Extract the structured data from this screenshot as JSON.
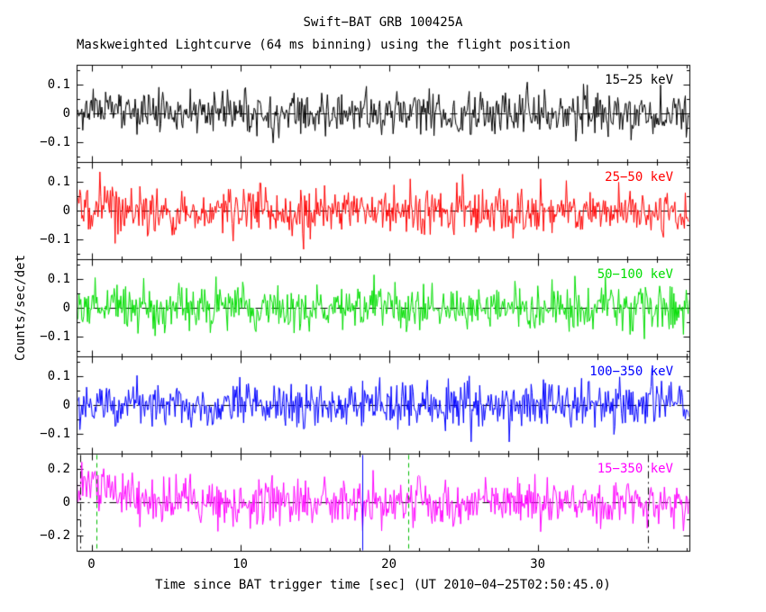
{
  "chart_data": {
    "type": "line",
    "title": "Swift−BAT GRB 100425A",
    "subtitle": "Maskweighted Lightcurve (64 ms binning) using the flight position",
    "xlabel": "Time since BAT trigger time [sec] (UT 2010−04−25T02:50:45.0)",
    "ylabel": "Counts/sec/det",
    "x_range": [
      -1.0,
      40.2
    ],
    "bin_sec": 0.064,
    "grid": false,
    "frame_color": "#000000",
    "x_minor_step": 2,
    "x_ticks": [
      {
        "t": 0,
        "label": "0"
      },
      {
        "t": 10,
        "label": "10"
      },
      {
        "t": 20,
        "label": "20"
      },
      {
        "t": 30,
        "label": "30"
      }
    ],
    "zero_line": {
      "style": "dash-dot",
      "color": "#000000"
    },
    "legend_position": "top-right-inside-each-panel",
    "panels": [
      {
        "label": "15−25 keV",
        "color": "#000000",
        "ylim": [
          -0.17,
          0.17
        ],
        "minor_step": 0.05,
        "yticks": [
          {
            "v": 0.1,
            "label": "0.1"
          },
          {
            "v": 0,
            "label": "0"
          },
          {
            "v": -0.1,
            "label": "−0.1"
          }
        ],
        "seed": 11,
        "noise_sigma": 0.036,
        "bumps": [
          {
            "t0": -1.0,
            "sigma": 5.0,
            "amp": 0.022
          }
        ]
      },
      {
        "label": "25−50 keV",
        "color": "#ff0000",
        "ylim": [
          -0.17,
          0.17
        ],
        "minor_step": 0.05,
        "yticks": [
          {
            "v": 0.1,
            "label": "0.1"
          },
          {
            "v": 0,
            "label": "0"
          },
          {
            "v": -0.1,
            "label": "−0.1"
          }
        ],
        "seed": 22,
        "noise_sigma": 0.04,
        "bumps": [
          {
            "t0": 1.0,
            "sigma": 2.0,
            "amp": 0.012
          }
        ]
      },
      {
        "label": "50−100 keV",
        "color": "#00dd00",
        "ylim": [
          -0.17,
          0.17
        ],
        "minor_step": 0.05,
        "yticks": [
          {
            "v": 0.1,
            "label": "0.1"
          },
          {
            "v": 0,
            "label": "0"
          },
          {
            "v": -0.1,
            "label": "−0.1"
          }
        ],
        "seed": 33,
        "noise_sigma": 0.042,
        "bumps": [
          {
            "t0": 0.8,
            "sigma": 1.5,
            "amp": 0.015
          }
        ]
      },
      {
        "label": "100−350 keV",
        "color": "#0000ff",
        "ylim": [
          -0.17,
          0.17
        ],
        "minor_step": 0.05,
        "yticks": [
          {
            "v": 0.1,
            "label": "0.1"
          },
          {
            "v": 0,
            "label": "0"
          },
          {
            "v": -0.1,
            "label": "−0.1"
          }
        ],
        "seed": 44,
        "noise_sigma": 0.04,
        "bumps": []
      },
      {
        "label": "15−350 keV",
        "color": "#ff00ff",
        "ylim": [
          -0.29,
          0.29
        ],
        "minor_step": 0.1,
        "yticks": [
          {
            "v": 0.2,
            "label": "0.2"
          },
          {
            "v": 0,
            "label": "0"
          },
          {
            "v": -0.2,
            "label": "−0.2"
          }
        ],
        "seed": 55,
        "noise_sigma": 0.07,
        "bumps": [
          {
            "t0": 0.8,
            "sigma": 1.6,
            "amp": 0.07
          },
          {
            "t0": -0.5,
            "sigma": 0.7,
            "amp": 0.035
          }
        ]
      }
    ],
    "markers": [
      {
        "panel": 4,
        "t": -0.75,
        "style": "dash-dot",
        "color": "#000000"
      },
      {
        "panel": 4,
        "t": 0.35,
        "style": "dashed",
        "color": "#00bb00"
      },
      {
        "panel": 4,
        "t": 18.2,
        "style": "solid",
        "color": "#0000ff"
      },
      {
        "panel": 4,
        "t": 21.3,
        "style": "dashed",
        "color": "#00bb00"
      },
      {
        "panel": 4,
        "t": 37.4,
        "style": "dash-dot",
        "color": "#000000"
      }
    ]
  }
}
